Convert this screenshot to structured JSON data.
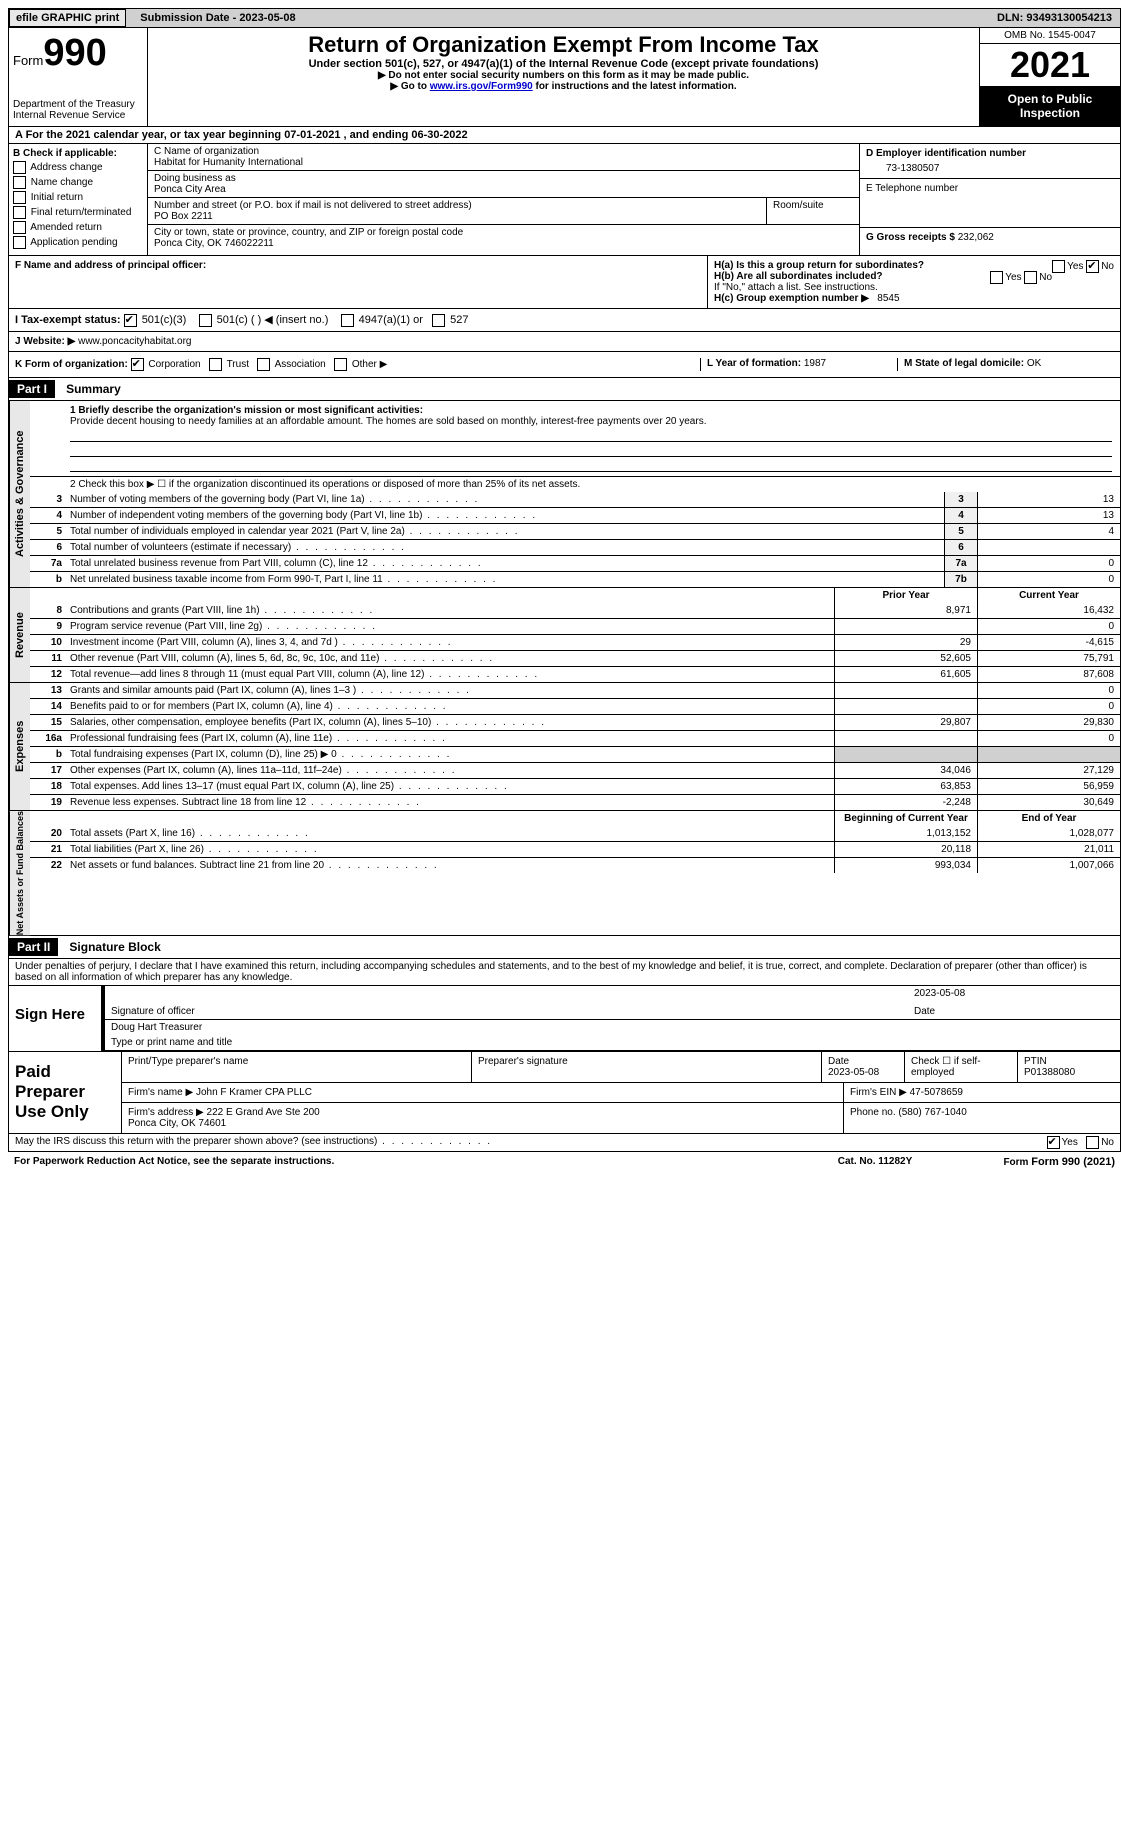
{
  "topbar": {
    "efile_btn": "efile GRAPHIC print",
    "submission_label": "Submission Date - 2023-05-08",
    "dln_label": "DLN: 93493130054213"
  },
  "header": {
    "form_label": "Form",
    "form_num": "990",
    "dept": "Department of the Treasury\nInternal Revenue Service",
    "title": "Return of Organization Exempt From Income Tax",
    "subtitle": "Under section 501(c), 527, or 4947(a)(1) of the Internal Revenue Code (except private foundations)",
    "note1": "▶ Do not enter social security numbers on this form as it may be made public.",
    "note2_pre": "▶ Go to ",
    "note2_link": "www.irs.gov/Form990",
    "note2_post": " for instructions and the latest information.",
    "omb": "OMB No. 1545-0047",
    "year": "2021",
    "inspection": "Open to Public Inspection"
  },
  "line_a": "A For the 2021 calendar year, or tax year beginning 07-01-2021   , and ending 06-30-2022",
  "box_b": {
    "label": "B Check if applicable:",
    "opts": [
      "Address change",
      "Name change",
      "Initial return",
      "Final return/terminated",
      "Amended return",
      "Application pending"
    ]
  },
  "box_c": {
    "name_label": "C Name of organization",
    "name": "Habitat for Humanity International",
    "dba_label": "Doing business as",
    "dba": "Ponca City Area",
    "addr_label": "Number and street (or P.O. box if mail is not delivered to street address)",
    "room_label": "Room/suite",
    "addr": "PO Box 2211",
    "city_label": "City or town, state or province, country, and ZIP or foreign postal code",
    "city": "Ponca City, OK  746022211"
  },
  "box_d": {
    "ein_label": "D Employer identification number",
    "ein": "73-1380507",
    "phone_label": "E Telephone number",
    "receipts_label": "G Gross receipts $",
    "receipts": "232,062"
  },
  "box_f": {
    "label": "F Name and address of principal officer:"
  },
  "box_h": {
    "ha": "H(a)  Is this a group return for subordinates?",
    "ha_yes": "Yes",
    "ha_no": "No",
    "hb": "H(b)  Are all subordinates included?",
    "hb_note": "If \"No,\" attach a list. See instructions.",
    "hc": "H(c)  Group exemption number ▶",
    "hc_val": "8545"
  },
  "box_i": {
    "label": "I  Tax-exempt status:",
    "opt1": "501(c)(3)",
    "opt2": "501(c) (  ) ◀ (insert no.)",
    "opt3": "4947(a)(1) or",
    "opt4": "527"
  },
  "box_j": {
    "label": "J  Website: ▶",
    "val": "www.poncacityhabitat.org"
  },
  "box_k": {
    "label": "K Form of organization:",
    "opts": [
      "Corporation",
      "Trust",
      "Association",
      "Other ▶"
    ]
  },
  "box_l": {
    "label": "L Year of formation:",
    "val": "1987"
  },
  "box_m": {
    "label": "M State of legal domicile:",
    "val": "OK"
  },
  "part1": {
    "head": "Part I",
    "title": "Summary",
    "line1_label": "1  Briefly describe the organization's mission or most significant activities:",
    "mission": "Provide decent housing to needy families at an affordable amount. The homes are sold based on monthly, interest-free payments over 20 years.",
    "line2": "2   Check this box ▶ ☐ if the organization discontinued its operations or disposed of more than 25% of its net assets.",
    "vert_ag": "Activities & Governance",
    "vert_rev": "Revenue",
    "vert_exp": "Expenses",
    "vert_net": "Net Assets or Fund Balances",
    "lines_ag": [
      {
        "n": "3",
        "d": "Number of voting members of the governing body (Part VI, line 1a)",
        "b": "3",
        "v": "13"
      },
      {
        "n": "4",
        "d": "Number of independent voting members of the governing body (Part VI, line 1b)",
        "b": "4",
        "v": "13"
      },
      {
        "n": "5",
        "d": "Total number of individuals employed in calendar year 2021 (Part V, line 2a)",
        "b": "5",
        "v": "4"
      },
      {
        "n": "6",
        "d": "Total number of volunteers (estimate if necessary)",
        "b": "6",
        "v": ""
      },
      {
        "n": "7a",
        "d": "Total unrelated business revenue from Part VIII, column (C), line 12",
        "b": "7a",
        "v": "0"
      },
      {
        "n": "b",
        "d": "Net unrelated business taxable income from Form 990-T, Part I, line 11",
        "b": "7b",
        "v": "0"
      }
    ],
    "col_prior": "Prior Year",
    "col_current": "Current Year",
    "lines_rev": [
      {
        "n": "8",
        "d": "Contributions and grants (Part VIII, line 1h)",
        "p": "8,971",
        "c": "16,432"
      },
      {
        "n": "9",
        "d": "Program service revenue (Part VIII, line 2g)",
        "p": "",
        "c": "0"
      },
      {
        "n": "10",
        "d": "Investment income (Part VIII, column (A), lines 3, 4, and 7d )",
        "p": "29",
        "c": "-4,615"
      },
      {
        "n": "11",
        "d": "Other revenue (Part VIII, column (A), lines 5, 6d, 8c, 9c, 10c, and 11e)",
        "p": "52,605",
        "c": "75,791"
      },
      {
        "n": "12",
        "d": "Total revenue—add lines 8 through 11 (must equal Part VIII, column (A), line 12)",
        "p": "61,605",
        "c": "87,608"
      }
    ],
    "lines_exp": [
      {
        "n": "13",
        "d": "Grants and similar amounts paid (Part IX, column (A), lines 1–3 )",
        "p": "",
        "c": "0"
      },
      {
        "n": "14",
        "d": "Benefits paid to or for members (Part IX, column (A), line 4)",
        "p": "",
        "c": "0"
      },
      {
        "n": "15",
        "d": "Salaries, other compensation, employee benefits (Part IX, column (A), lines 5–10)",
        "p": "29,807",
        "c": "29,830"
      },
      {
        "n": "16a",
        "d": "Professional fundraising fees (Part IX, column (A), line 11e)",
        "p": "",
        "c": "0"
      },
      {
        "n": "b",
        "d": "Total fundraising expenses (Part IX, column (D), line 25) ▶ 0",
        "p": "shade",
        "c": "shade"
      },
      {
        "n": "17",
        "d": "Other expenses (Part IX, column (A), lines 11a–11d, 11f–24e)",
        "p": "34,046",
        "c": "27,129"
      },
      {
        "n": "18",
        "d": "Total expenses. Add lines 13–17 (must equal Part IX, column (A), line 25)",
        "p": "63,853",
        "c": "56,959"
      },
      {
        "n": "19",
        "d": "Revenue less expenses. Subtract line 18 from line 12",
        "p": "-2,248",
        "c": "30,649"
      }
    ],
    "col_begin": "Beginning of Current Year",
    "col_end": "End of Year",
    "lines_net": [
      {
        "n": "20",
        "d": "Total assets (Part X, line 16)",
        "p": "1,013,152",
        "c": "1,028,077"
      },
      {
        "n": "21",
        "d": "Total liabilities (Part X, line 26)",
        "p": "20,118",
        "c": "21,011"
      },
      {
        "n": "22",
        "d": "Net assets or fund balances. Subtract line 21 from line 20",
        "p": "993,034",
        "c": "1,007,066"
      }
    ]
  },
  "part2": {
    "head": "Part II",
    "title": "Signature Block",
    "decl": "Under penalties of perjury, I declare that I have examined this return, including accompanying schedules and statements, and to the best of my knowledge and belief, it is true, correct, and complete. Declaration of preparer (other than officer) is based on all information of which preparer has any knowledge.",
    "sign_here": "Sign Here",
    "sig_officer": "Signature of officer",
    "sig_date": "2023-05-08",
    "sig_name": "Doug Hart  Treasurer",
    "sig_name_label": "Type or print name and title",
    "paid_label": "Paid Preparer Use Only",
    "prep_name_label": "Print/Type preparer's name",
    "prep_sig_label": "Preparer's signature",
    "prep_date_label": "Date",
    "prep_date": "2023-05-08",
    "prep_check": "Check ☐ if self-employed",
    "ptin_label": "PTIN",
    "ptin": "P01388080",
    "firm_name_label": "Firm's name    ▶",
    "firm_name": "John F Kramer CPA PLLC",
    "firm_ein_label": "Firm's EIN ▶",
    "firm_ein": "47-5078659",
    "firm_addr_label": "Firm's address ▶",
    "firm_addr": "222 E Grand Ave Ste 200\nPonca City, OK  74601",
    "firm_phone_label": "Phone no.",
    "firm_phone": "(580) 767-1040",
    "may_irs": "May the IRS discuss this return with the preparer shown above? (see instructions)",
    "may_yes": "Yes",
    "may_no": "No"
  },
  "footer": {
    "pra": "For Paperwork Reduction Act Notice, see the separate instructions.",
    "cat": "Cat. No. 11282Y",
    "form": "Form 990 (2021)"
  }
}
